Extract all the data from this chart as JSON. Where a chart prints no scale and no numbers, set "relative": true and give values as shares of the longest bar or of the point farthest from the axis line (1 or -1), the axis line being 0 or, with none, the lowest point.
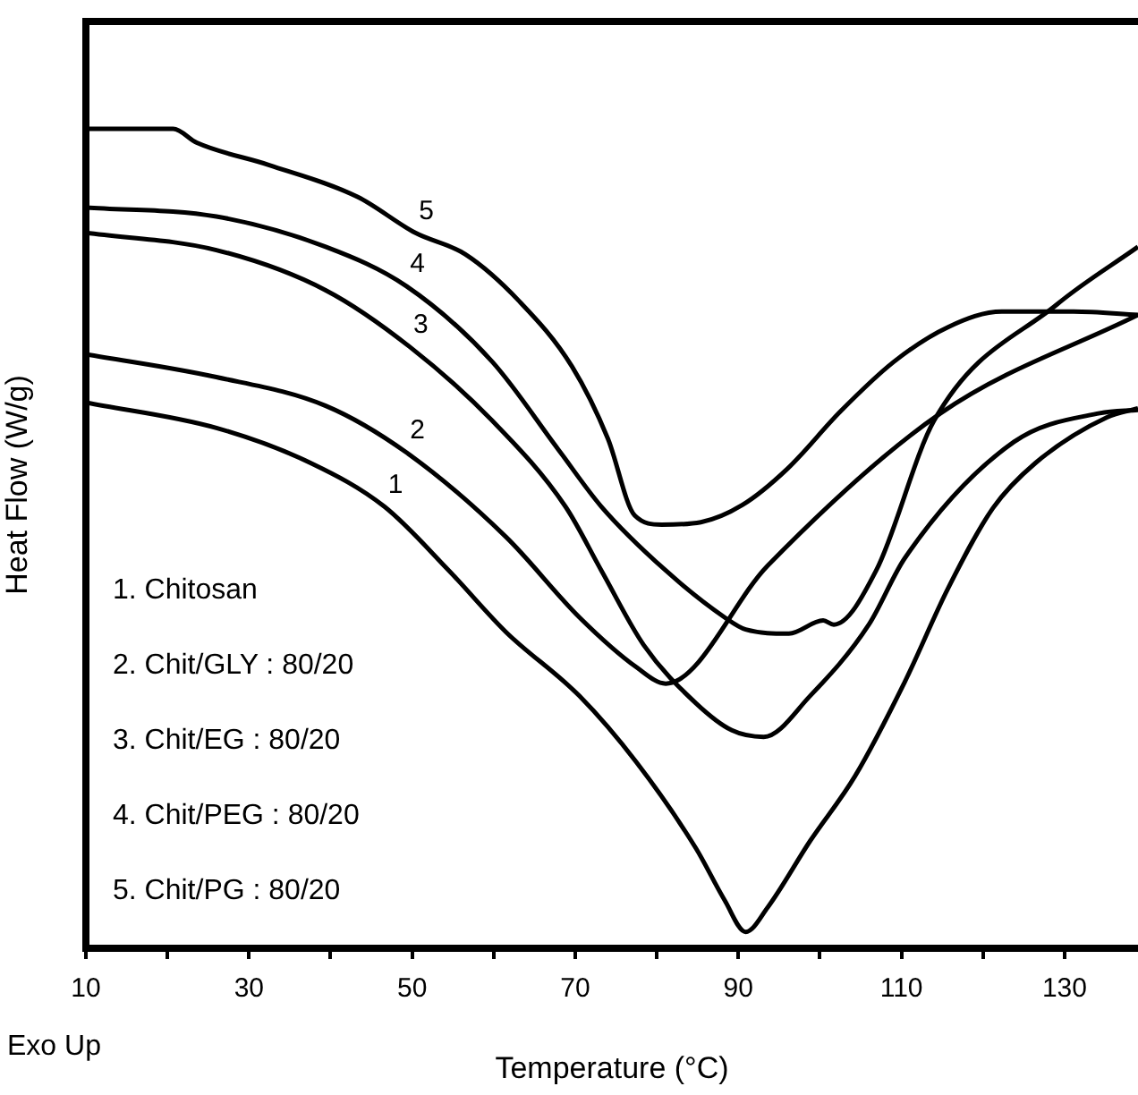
{
  "chart_data": {
    "type": "line",
    "xlabel": "Temperature (°C)",
    "ylabel": "Heat Flow (W/g)",
    "relative": true,
    "xlim": [
      10,
      139
    ],
    "xticks": [
      10,
      {
        "value": 20,
        "label": null
      },
      30,
      {
        "value": 40,
        "label": null
      },
      50,
      {
        "value": 60,
        "label": null
      },
      70,
      {
        "value": 80,
        "label": null
      },
      90,
      {
        "value": 100,
        "label": null
      },
      110,
      {
        "value": 120,
        "label": null
      },
      130
    ],
    "grid": false,
    "legend": false,
    "marker": "none",
    "line_style": "solid",
    "annotations": [
      "1. Chitosan",
      "2. Chit/GLY : 80/20",
      "3. Chit/EG : 80/20",
      "4. Chit/PEG : 80/20",
      "5. Chit/PG : 80/20",
      "Exo Up"
    ],
    "series": [
      {
        "name": "1",
        "color": "#000000",
        "x": [
          10,
          26,
          37.6,
          46.6,
          54.5,
          61.5,
          70.5,
          77.5,
          84.8,
          88.3,
          90.9,
          93.6,
          98.8,
          104.3,
          110.4,
          115.7,
          121.2,
          126.4,
          135.2,
          139
        ],
        "values": [
          0.666,
          0.635,
          0.592,
          0.539,
          0.461,
          0.386,
          0.308,
          0.227,
          0.122,
          0.059,
          0.02,
          0.05,
          0.131,
          0.21,
          0.325,
          0.439,
          0.537,
          0.592,
          0.648,
          0.659
        ]
      },
      {
        "name": "2",
        "color": "#000000",
        "x": [
          10,
          26,
          39.4,
          49.3,
          61.5,
          70.5,
          77.5,
          81.1,
          93.6,
          114.8,
          139
        ],
        "values": [
          0.725,
          0.697,
          0.662,
          0.605,
          0.502,
          0.404,
          0.343,
          0.323,
          0.467,
          0.653,
          0.773
        ]
      },
      {
        "name": "3",
        "color": "#000000",
        "x": [
          10,
          26,
          39.4,
          49.7,
          59.8,
          68.8,
          73.2,
          78.4,
          84.8,
          89.2,
          93.1,
          98.8,
          106,
          110.4,
          123.8,
          134.3,
          139
        ],
        "values": [
          0.873,
          0.852,
          0.803,
          0.734,
          0.644,
          0.539,
          0.461,
          0.37,
          0.299,
          0.266,
          0.258,
          0.308,
          0.395,
          0.476,
          0.618,
          0.653,
          0.657
        ]
      },
      {
        "name": "4",
        "color": "#000000",
        "x": [
          10,
          26,
          39.4,
          49.3,
          59.8,
          67.9,
          73.2,
          81.1,
          88.3,
          90.9,
          96.2,
          100.4,
          101.7,
          106.9,
          114,
          129.1,
          139
        ],
        "values": [
          0.904,
          0.893,
          0.856,
          0.808,
          0.716,
          0.609,
          0.539,
          0.461,
          0.404,
          0.389,
          0.384,
          0.4,
          0.395,
          0.461,
          0.644,
          0.786,
          0.856
        ]
      },
      {
        "name": "5",
        "color": "#000000",
        "x": [
          10,
          20.7,
          23.6,
          32.4,
          43.3,
          50.4,
          56.5,
          63.1,
          69.6,
          74,
          77.3,
          80.6,
          85.4,
          90.5,
          96,
          102.5,
          109.1,
          115.7,
          122.3,
          131.1,
          139
        ],
        "values": [
          1,
          1,
          0.983,
          0.956,
          0.917,
          0.873,
          0.847,
          0.79,
          0.71,
          0.622,
          0.528,
          0.517,
          0.52,
          0.541,
          0.585,
          0.655,
          0.716,
          0.758,
          0.777,
          0.777,
          0.773
        ]
      }
    ]
  }
}
